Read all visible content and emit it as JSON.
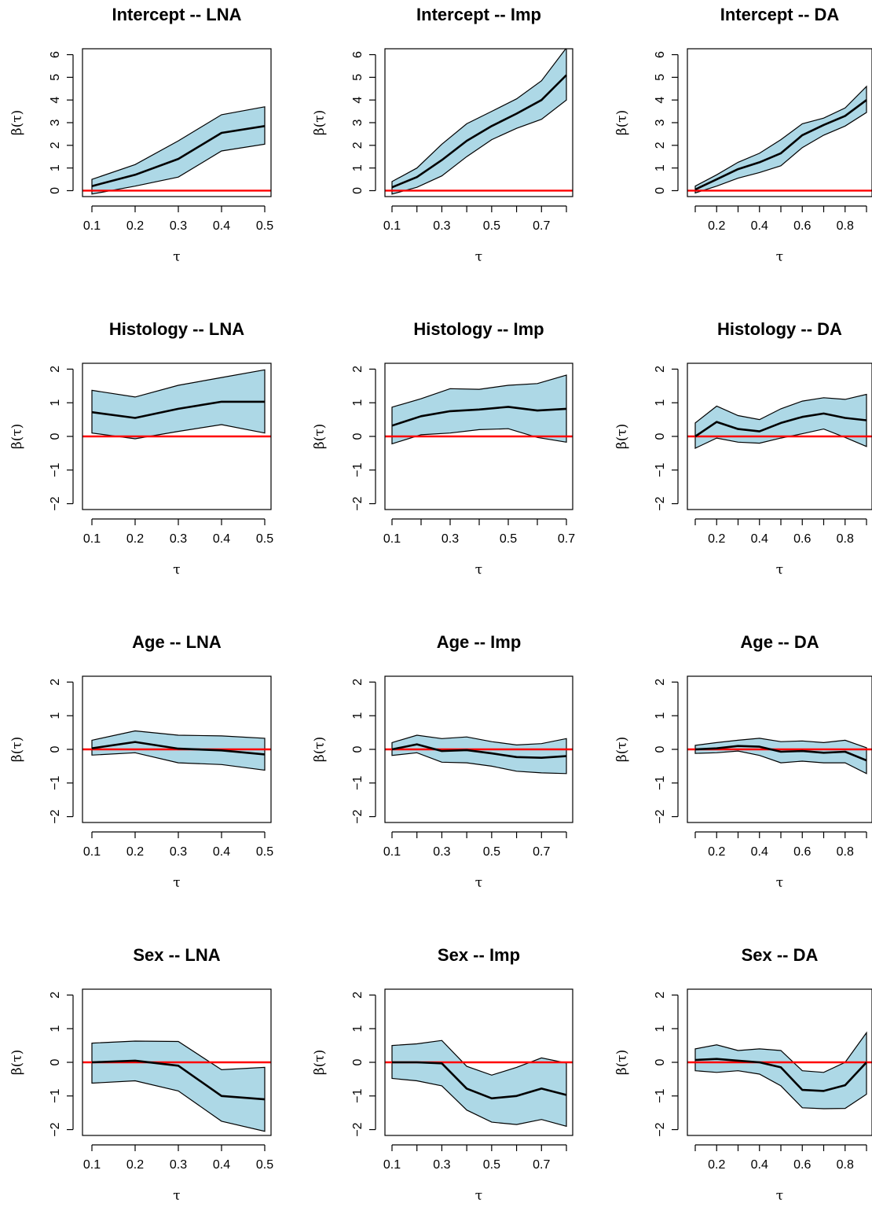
{
  "chart_data": [
    {
      "type": "line",
      "title": "Intercept --  LNA",
      "xlabel": "τ",
      "ylabel": "β(τ)",
      "xlim": [
        0.1,
        0.5
      ],
      "ylim": [
        0,
        6
      ],
      "xticks": [
        0.1,
        0.2,
        0.3,
        0.4,
        0.5
      ],
      "xtick_labels": [
        "0.1",
        "0.2",
        "0.3",
        "0.4",
        "0.5"
      ],
      "yticks": [
        0,
        1,
        2,
        3,
        4,
        5,
        6
      ],
      "ytick_labels": [
        "0",
        "1",
        "2",
        "3",
        "4",
        "5",
        "6"
      ],
      "reference_line": 0,
      "x": [
        0.1,
        0.2,
        0.3,
        0.4,
        0.5
      ],
      "series": [
        {
          "values": [
            0.2,
            0.7,
            1.4,
            2.55,
            2.85
          ],
          "color": "#000000"
        }
      ],
      "band": {
        "lower": [
          -0.15,
          0.2,
          0.6,
          1.75,
          2.05
        ],
        "upper": [
          0.5,
          1.15,
          2.2,
          3.35,
          3.7
        ],
        "color": "#add8e6"
      }
    },
    {
      "type": "line",
      "title": "Intercept --  Imp",
      "xlabel": "τ",
      "ylabel": "β(τ)",
      "xlim": [
        0.1,
        0.8
      ],
      "ylim": [
        0,
        6
      ],
      "xticks": [
        0.1,
        0.2,
        0.3,
        0.4,
        0.5,
        0.6,
        0.7,
        0.8
      ],
      "xtick_labels": [
        "0.1",
        "",
        "0.3",
        "",
        "0.5",
        "",
        "0.7",
        ""
      ],
      "yticks": [
        0,
        1,
        2,
        3,
        4,
        5,
        6
      ],
      "ytick_labels": [
        "0",
        "1",
        "2",
        "3",
        "4",
        "5",
        "6"
      ],
      "reference_line": 0,
      "x": [
        0.1,
        0.2,
        0.3,
        0.4,
        0.5,
        0.6,
        0.7,
        0.8
      ],
      "series": [
        {
          "values": [
            0.15,
            0.6,
            1.35,
            2.2,
            2.85,
            3.4,
            4.0,
            5.1
          ],
          "color": "#000000"
        }
      ],
      "band": {
        "lower": [
          -0.15,
          0.15,
          0.65,
          1.5,
          2.25,
          2.75,
          3.15,
          4.0
        ],
        "upper": [
          0.4,
          1.0,
          2.05,
          2.95,
          3.5,
          4.05,
          4.85,
          6.3
        ],
        "color": "#add8e6"
      }
    },
    {
      "type": "line",
      "title": "Intercept --  DA",
      "xlabel": "τ",
      "ylabel": "β(τ)",
      "xlim": [
        0.1,
        0.9
      ],
      "ylim": [
        0,
        6
      ],
      "xticks": [
        0.1,
        0.2,
        0.3,
        0.4,
        0.5,
        0.6,
        0.7,
        0.8,
        0.9
      ],
      "xtick_labels": [
        "",
        "0.2",
        "",
        "0.4",
        "",
        "0.6",
        "",
        "0.8",
        ""
      ],
      "yticks": [
        0,
        1,
        2,
        3,
        4,
        5,
        6
      ],
      "ytick_labels": [
        "0",
        "1",
        "2",
        "3",
        "4",
        "5",
        "6"
      ],
      "reference_line": 0,
      "x": [
        0.1,
        0.2,
        0.3,
        0.4,
        0.5,
        0.6,
        0.7,
        0.8,
        0.9
      ],
      "series": [
        {
          "values": [
            0.05,
            0.5,
            0.95,
            1.25,
            1.65,
            2.45,
            2.9,
            3.3,
            4.0
          ],
          "color": "#000000"
        }
      ],
      "band": {
        "lower": [
          -0.1,
          0.2,
          0.55,
          0.8,
          1.1,
          1.9,
          2.45,
          2.85,
          3.45
        ],
        "upper": [
          0.2,
          0.7,
          1.25,
          1.65,
          2.25,
          2.95,
          3.2,
          3.65,
          4.6
        ],
        "color": "#add8e6"
      }
    },
    {
      "type": "line",
      "title": "Histology --  LNA",
      "xlabel": "τ",
      "ylabel": "β(τ)",
      "xlim": [
        0.1,
        0.5
      ],
      "ylim": [
        -2,
        2
      ],
      "xticks": [
        0.1,
        0.2,
        0.3,
        0.4,
        0.5
      ],
      "xtick_labels": [
        "0.1",
        "0.2",
        "0.3",
        "0.4",
        "0.5"
      ],
      "yticks": [
        -2,
        -1,
        0,
        1,
        2
      ],
      "ytick_labels": [
        "−2",
        "−1",
        "0",
        "1",
        "2"
      ],
      "reference_line": 0,
      "x": [
        0.1,
        0.2,
        0.3,
        0.4,
        0.5
      ],
      "series": [
        {
          "values": [
            0.72,
            0.55,
            0.82,
            1.03,
            1.03
          ],
          "color": "#000000"
        }
      ],
      "band": {
        "lower": [
          0.1,
          -0.07,
          0.15,
          0.35,
          0.1
        ],
        "upper": [
          1.37,
          1.17,
          1.52,
          1.75,
          1.98
        ],
        "color": "#add8e6"
      }
    },
    {
      "type": "line",
      "title": "Histology --  Imp",
      "xlabel": "τ",
      "ylabel": "β(τ)",
      "xlim": [
        0.1,
        0.7
      ],
      "ylim": [
        -2,
        2
      ],
      "xticks": [
        0.1,
        0.2,
        0.3,
        0.4,
        0.5,
        0.6,
        0.7
      ],
      "xtick_labels": [
        "0.1",
        "",
        "0.3",
        "",
        "0.5",
        "",
        "0.7"
      ],
      "yticks": [
        -2,
        -1,
        0,
        1,
        2
      ],
      "ytick_labels": [
        "−2",
        "−1",
        "0",
        "1",
        "2"
      ],
      "reference_line": 0,
      "x": [
        0.1,
        0.2,
        0.3,
        0.4,
        0.5,
        0.6,
        0.7
      ],
      "series": [
        {
          "values": [
            0.32,
            0.6,
            0.75,
            0.8,
            0.88,
            0.77,
            0.82
          ],
          "color": "#000000"
        }
      ],
      "band": {
        "lower": [
          -0.22,
          0.05,
          0.1,
          0.2,
          0.23,
          -0.03,
          -0.17
        ],
        "upper": [
          0.87,
          1.12,
          1.42,
          1.4,
          1.52,
          1.57,
          1.82
        ],
        "color": "#add8e6"
      }
    },
    {
      "type": "line",
      "title": "Histology --  DA",
      "xlabel": "τ",
      "ylabel": "β(τ)",
      "xlim": [
        0.1,
        0.9
      ],
      "ylim": [
        -2,
        2
      ],
      "xticks": [
        0.1,
        0.2,
        0.3,
        0.4,
        0.5,
        0.6,
        0.7,
        0.8,
        0.9
      ],
      "xtick_labels": [
        "",
        "0.2",
        "",
        "0.4",
        "",
        "0.6",
        "",
        "0.8",
        ""
      ],
      "yticks": [
        -2,
        -1,
        0,
        1,
        2
      ],
      "ytick_labels": [
        "−2",
        "−1",
        "0",
        "1",
        "2"
      ],
      "reference_line": 0,
      "x": [
        0.1,
        0.2,
        0.3,
        0.4,
        0.5,
        0.6,
        0.7,
        0.8,
        0.9
      ],
      "series": [
        {
          "values": [
            0.0,
            0.43,
            0.22,
            0.15,
            0.4,
            0.58,
            0.68,
            0.55,
            0.48
          ],
          "color": "#000000"
        }
      ],
      "band": {
        "lower": [
          -0.35,
          -0.05,
          -0.17,
          -0.2,
          -0.05,
          0.08,
          0.22,
          -0.03,
          -0.3
        ],
        "upper": [
          0.4,
          0.9,
          0.62,
          0.5,
          0.82,
          1.05,
          1.15,
          1.1,
          1.25
        ],
        "color": "#add8e6"
      }
    },
    {
      "type": "line",
      "title": "Age --  LNA",
      "xlabel": "τ",
      "ylabel": "β(τ)",
      "xlim": [
        0.1,
        0.5
      ],
      "ylim": [
        -2,
        2
      ],
      "xticks": [
        0.1,
        0.2,
        0.3,
        0.4,
        0.5
      ],
      "xtick_labels": [
        "0.1",
        "0.2",
        "0.3",
        "0.4",
        "0.5"
      ],
      "yticks": [
        -2,
        -1,
        0,
        1,
        2
      ],
      "ytick_labels": [
        "−2",
        "−1",
        "0",
        "1",
        "2"
      ],
      "reference_line": 0,
      "x": [
        0.1,
        0.2,
        0.3,
        0.4,
        0.5
      ],
      "series": [
        {
          "values": [
            0.03,
            0.22,
            0.02,
            -0.03,
            -0.15
          ],
          "color": "#000000"
        }
      ],
      "band": {
        "lower": [
          -0.17,
          -0.1,
          -0.4,
          -0.45,
          -0.62
        ],
        "upper": [
          0.27,
          0.55,
          0.42,
          0.4,
          0.33
        ],
        "color": "#add8e6"
      }
    },
    {
      "type": "line",
      "title": "Age --  Imp",
      "xlabel": "τ",
      "ylabel": "β(τ)",
      "xlim": [
        0.1,
        0.8
      ],
      "ylim": [
        -2,
        2
      ],
      "xticks": [
        0.1,
        0.2,
        0.3,
        0.4,
        0.5,
        0.6,
        0.7,
        0.8
      ],
      "xtick_labels": [
        "0.1",
        "",
        "0.3",
        "",
        "0.5",
        "",
        "0.7",
        ""
      ],
      "yticks": [
        -2,
        -1,
        0,
        1,
        2
      ],
      "ytick_labels": [
        "−2",
        "−1",
        "0",
        "1",
        "2"
      ],
      "reference_line": 0,
      "x": [
        0.1,
        0.2,
        0.3,
        0.4,
        0.5,
        0.6,
        0.7,
        0.8
      ],
      "series": [
        {
          "values": [
            0.0,
            0.15,
            -0.05,
            -0.02,
            -0.12,
            -0.23,
            -0.25,
            -0.2
          ],
          "color": "#000000"
        }
      ],
      "band": {
        "lower": [
          -0.18,
          -0.1,
          -0.38,
          -0.4,
          -0.5,
          -0.65,
          -0.7,
          -0.72
        ],
        "upper": [
          0.2,
          0.42,
          0.32,
          0.37,
          0.23,
          0.13,
          0.17,
          0.32
        ],
        "color": "#add8e6"
      }
    },
    {
      "type": "line",
      "title": "Age --  DA",
      "xlabel": "τ",
      "ylabel": "β(τ)",
      "xlim": [
        0.1,
        0.9
      ],
      "ylim": [
        -2,
        2
      ],
      "xticks": [
        0.1,
        0.2,
        0.3,
        0.4,
        0.5,
        0.6,
        0.7,
        0.8,
        0.9
      ],
      "xtick_labels": [
        "",
        "0.2",
        "",
        "0.4",
        "",
        "0.6",
        "",
        "0.8",
        ""
      ],
      "yticks": [
        -2,
        -1,
        0,
        1,
        2
      ],
      "ytick_labels": [
        "−2",
        "−1",
        "0",
        "1",
        "2"
      ],
      "reference_line": 0,
      "x": [
        0.1,
        0.2,
        0.3,
        0.4,
        0.5,
        0.6,
        0.7,
        0.8,
        0.9
      ],
      "series": [
        {
          "values": [
            0.0,
            0.03,
            0.1,
            0.08,
            -0.07,
            -0.05,
            -0.1,
            -0.07,
            -0.33
          ],
          "color": "#000000"
        }
      ],
      "band": {
        "lower": [
          -0.12,
          -0.1,
          -0.05,
          -0.18,
          -0.4,
          -0.35,
          -0.4,
          -0.4,
          -0.72
        ],
        "upper": [
          0.12,
          0.2,
          0.27,
          0.33,
          0.23,
          0.25,
          0.2,
          0.27,
          0.05
        ],
        "color": "#add8e6"
      }
    },
    {
      "type": "line",
      "title": "Sex --  LNA",
      "xlabel": "τ",
      "ylabel": "β(τ)",
      "xlim": [
        0.1,
        0.5
      ],
      "ylim": [
        -2,
        2
      ],
      "xticks": [
        0.1,
        0.2,
        0.3,
        0.4,
        0.5
      ],
      "xtick_labels": [
        "0.1",
        "0.2",
        "0.3",
        "0.4",
        "0.5"
      ],
      "yticks": [
        -2,
        -1,
        0,
        1,
        2
      ],
      "ytick_labels": [
        "−2",
        "−1",
        "0",
        "1",
        "2"
      ],
      "reference_line": 0,
      "x": [
        0.1,
        0.2,
        0.3,
        0.4,
        0.5
      ],
      "series": [
        {
          "values": [
            0.0,
            0.05,
            -0.1,
            -1.0,
            -1.1
          ],
          "color": "#000000"
        }
      ],
      "band": {
        "lower": [
          -0.62,
          -0.55,
          -0.85,
          -1.75,
          -2.05
        ],
        "upper": [
          0.57,
          0.63,
          0.62,
          -0.22,
          -0.15
        ],
        "color": "#add8e6"
      }
    },
    {
      "type": "line",
      "title": "Sex --  Imp",
      "xlabel": "τ",
      "ylabel": "β(τ)",
      "xlim": [
        0.1,
        0.8
      ],
      "ylim": [
        -2,
        2
      ],
      "xticks": [
        0.1,
        0.2,
        0.3,
        0.4,
        0.5,
        0.6,
        0.7,
        0.8
      ],
      "xtick_labels": [
        "0.1",
        "",
        "0.3",
        "",
        "0.5",
        "",
        "0.7",
        ""
      ],
      "yticks": [
        -2,
        -1,
        0,
        1,
        2
      ],
      "ytick_labels": [
        "−2",
        "−1",
        "0",
        "1",
        "2"
      ],
      "reference_line": 0,
      "x": [
        0.1,
        0.2,
        0.3,
        0.4,
        0.5,
        0.6,
        0.7,
        0.8
      ],
      "series": [
        {
          "values": [
            0.0,
            0.0,
            -0.03,
            -0.78,
            -1.07,
            -1.0,
            -0.78,
            -0.97
          ],
          "color": "#000000"
        }
      ],
      "band": {
        "lower": [
          -0.48,
          -0.55,
          -0.7,
          -1.42,
          -1.78,
          -1.85,
          -1.7,
          -1.9
        ],
        "upper": [
          0.5,
          0.55,
          0.65,
          -0.12,
          -0.38,
          -0.15,
          0.13,
          -0.02
        ],
        "color": "#add8e6"
      }
    },
    {
      "type": "line",
      "title": "Sex --  DA",
      "xlabel": "τ",
      "ylabel": "β(τ)",
      "xlim": [
        0.1,
        0.9
      ],
      "ylim": [
        -2,
        2
      ],
      "xticks": [
        0.1,
        0.2,
        0.3,
        0.4,
        0.5,
        0.6,
        0.7,
        0.8,
        0.9
      ],
      "xtick_labels": [
        "",
        "0.2",
        "",
        "0.4",
        "",
        "0.6",
        "",
        "0.8",
        ""
      ],
      "yticks": [
        -2,
        -1,
        0,
        1,
        2
      ],
      "ytick_labels": [
        "−2",
        "−1",
        "0",
        "1",
        "2"
      ],
      "reference_line": 0,
      "x": [
        0.1,
        0.2,
        0.3,
        0.4,
        0.5,
        0.6,
        0.7,
        0.8,
        0.9
      ],
      "series": [
        {
          "values": [
            0.07,
            0.1,
            0.05,
            0.0,
            -0.15,
            -0.82,
            -0.85,
            -0.68,
            0.0
          ],
          "color": "#000000"
        }
      ],
      "band": {
        "lower": [
          -0.25,
          -0.3,
          -0.25,
          -0.35,
          -0.7,
          -1.35,
          -1.38,
          -1.37,
          -0.95
        ],
        "upper": [
          0.4,
          0.52,
          0.35,
          0.4,
          0.35,
          -0.25,
          -0.3,
          0.0,
          0.88
        ],
        "color": "#add8e6"
      }
    }
  ]
}
